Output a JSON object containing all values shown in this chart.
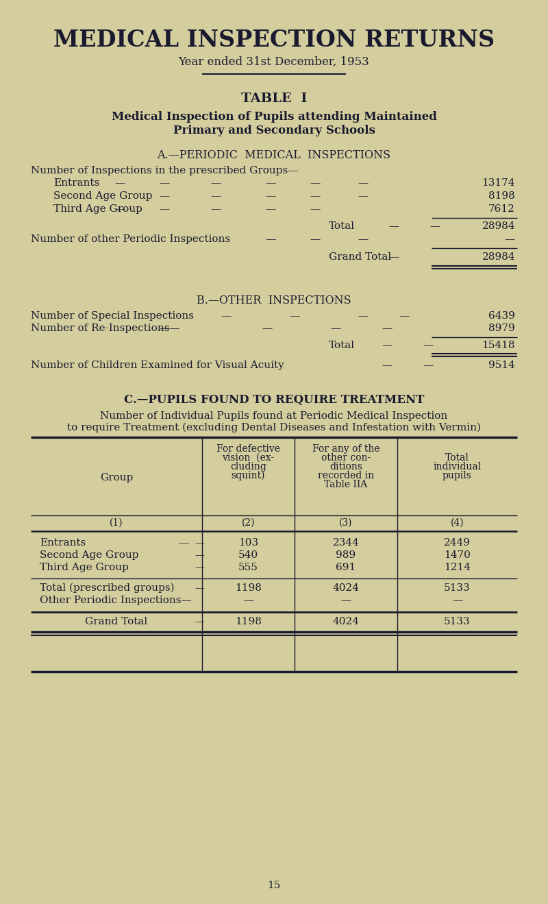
{
  "bg_color": "#d4ce9e",
  "text_color": "#1a1a2e",
  "title": "MEDICAL INSPECTION RETURNS",
  "subtitle": "Year ended 31st December, 1953",
  "table_label": "TABLE  I",
  "table_desc1": "Medical Inspection of Pupils attending Maintained",
  "table_desc2": "Primary and Secondary Schools",
  "section_a": "A.—PERIODIC  MEDICAL  INSPECTIONS",
  "section_a_intro": "Number of Inspections in the prescribed Groups—",
  "entrants_label": "Entrants",
  "entrants_val": "13174",
  "second_label": "Second Age Group",
  "second_val": "8198",
  "third_label": "Third Age Group",
  "third_val": "7612",
  "total_a_label": "Total",
  "total_a_val": "28984",
  "other_periodic_label": "Number of other Periodic Inspections",
  "other_periodic_val": "—",
  "grand_total_a_label": "Grand Total",
  "grand_total_a_val": "28984",
  "section_b": "B.—OTHER  INSPECTIONS",
  "special_label": "Number of Special Inspections",
  "special_val": "6439",
  "reinspect_label": "Number of Re-Inspections—",
  "reinspect_val": "8979",
  "total_b_label": "Total",
  "total_b_val": "15418",
  "visual_label": "Number of Children Examined for Visual Acuity",
  "visual_val": "9514",
  "section_c": "C.—PUPILS FOUND TO REQUIRE TREATMENT",
  "section_c_desc1": "Number of Individual Pupils found at Periodic Medical Inspection",
  "section_c_desc2": "to require Treatment (excluding Dental Diseases and Infestation with Vermin)",
  "col_header1a": "For defective",
  "col_header1b": "vision  (ex-",
  "col_header1c": "cluding",
  "col_header1d": "squint)",
  "col_header2a": "For any of the",
  "col_header2b": "other con-",
  "col_header2c": "ditions",
  "col_header2d": "recorded in",
  "col_header2e": "Table IIA",
  "col_header3a": "Total",
  "col_header3b": "individual",
  "col_header3c": "pupils",
  "col_group": "Group",
  "col_num1": "(1)",
  "col_num2": "(2)",
  "col_num3": "(3)",
  "col_num4": "(4)",
  "row_entrants": "Entrants",
  "row_second": "Second Age Group",
  "row_third": "Third Age Group",
  "row_total_pg": "Total (prescribed groups)",
  "row_other_pi": "Other Periodic Inspections—",
  "row_grand": "Grand Total",
  "dash": "—",
  "r1c2": "103",
  "r1c3": "2344",
  "r1c4": "2449",
  "r2c2": "540",
  "r2c3": "989",
  "r2c4": "1470",
  "r3c2": "555",
  "r3c3": "691",
  "r3c4": "1214",
  "r4c2": "1198",
  "r4c3": "4024",
  "r4c4": "5133",
  "r5c2": "—",
  "r5c3": "—",
  "r5c4": "—",
  "r6c2": "1198",
  "r6c3": "4024",
  "r6c4": "5133",
  "page_num": "15"
}
